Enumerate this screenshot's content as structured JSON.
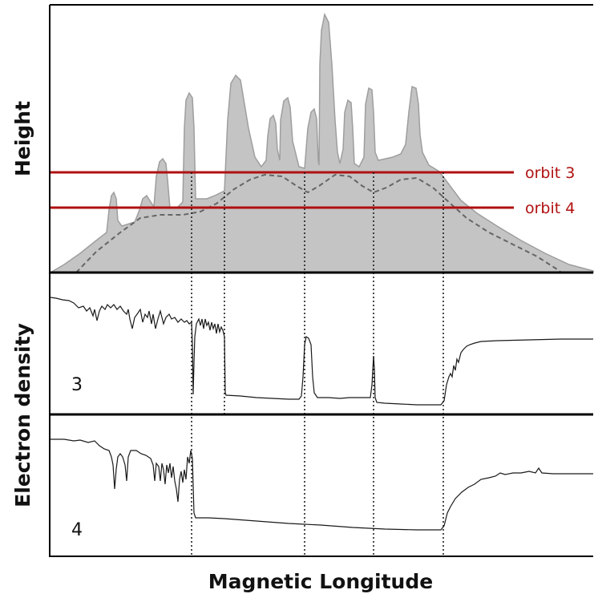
{
  "figure": {
    "y_axis_label_top": "Height",
    "y_axis_label_bottom": "Electron density",
    "x_axis_label": "Magnetic Longitude",
    "orbit_labels": [
      "orbit 3",
      "orbit 4"
    ],
    "panel_numbers": [
      "3",
      "4"
    ],
    "colors": {
      "orbit_line": "#b01010",
      "profile_fill": "#c4c4c4",
      "profile_edge": "#9a9a9a",
      "dashed_line": "#666666",
      "trace": "#1a1a1a"
    }
  }
}
